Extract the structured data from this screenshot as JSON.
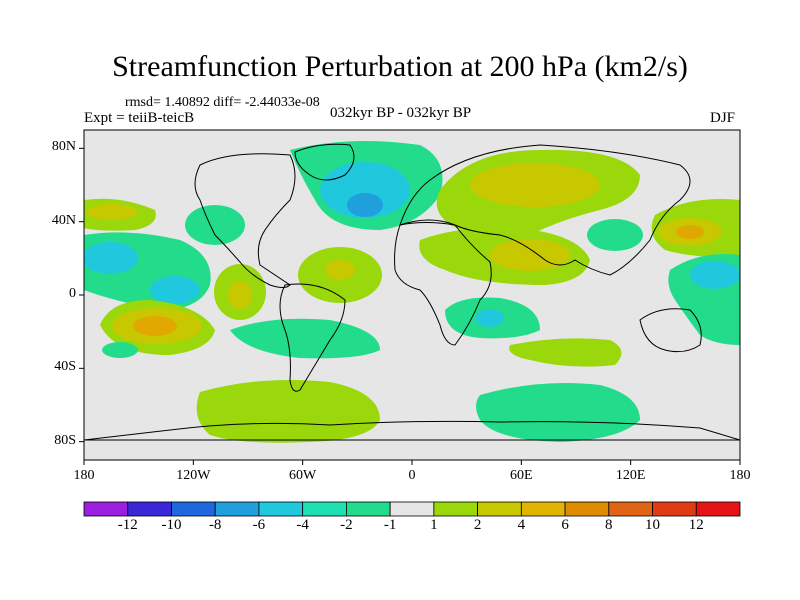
{
  "title": "Streamfunction Perturbation at 200 hPa (km2/s)",
  "stats": "rmsd= 1.40892 diff= -2.44033e-08",
  "experiment": "Expt = teiiB-teicB",
  "period": "032kyr BP - 032kyr BP",
  "season": "DJF",
  "colors": {
    "background": "#e6e6e6",
    "neg1": "#22dc8c",
    "pos1": "#9ad80c",
    "pos2": "#c8c800",
    "pos3": "#e0a800"
  },
  "y_axis": {
    "ticks": [
      {
        "label": "80N",
        "value": 80
      },
      {
        "label": "40N",
        "value": 40
      },
      {
        "label": "0",
        "value": 0
      },
      {
        "label": "40S",
        "value": -40
      },
      {
        "label": "80S",
        "value": -80
      }
    ]
  },
  "x_axis": {
    "ticks": [
      {
        "label": "180",
        "value": -180
      },
      {
        "label": "120W",
        "value": -120
      },
      {
        "label": "60W",
        "value": -60
      },
      {
        "label": "0",
        "value": 0
      },
      {
        "label": "60E",
        "value": 60
      },
      {
        "label": "120E",
        "value": 120
      },
      {
        "label": "180",
        "value": 180
      }
    ]
  },
  "colorbar": {
    "colors": [
      "#9b1fe0",
      "#3a27d8",
      "#1f67dc",
      "#1fa0dc",
      "#1fc8dc",
      "#1fe0b0",
      "#22dc8c",
      "#e6e6e6",
      "#9ad80c",
      "#c8c800",
      "#e0b400",
      "#e08c00",
      "#e06414",
      "#e03c14",
      "#e61414"
    ],
    "labels": [
      "-12",
      "-10",
      "-8",
      "-6",
      "-4",
      "-2",
      "-1",
      "1",
      "2",
      "4",
      "6",
      "8",
      "10",
      "12"
    ]
  },
  "chart_data": {
    "type": "contour-map",
    "variable": "Streamfunction Perturbation at 200 hPa",
    "units": "km2/s",
    "levels": [
      -12,
      -10,
      -8,
      -6,
      -4,
      -2,
      -1,
      1,
      2,
      4,
      6,
      8,
      10,
      12
    ],
    "lon_range": [
      -180,
      180
    ],
    "lat_range": [
      -90,
      90
    ],
    "features": [
      {
        "name": "North Atlantic / Greenland negative",
        "lon_center": -35,
        "lat_center": 55,
        "levels": [
          "-1",
          "-2"
        ]
      },
      {
        "name": "Eurasia positive",
        "lon_center": 30,
        "lat_center": 50,
        "levels": [
          "1",
          "2"
        ]
      },
      {
        "name": "Middle East positive",
        "lon_center": 55,
        "lat_center": 25,
        "levels": [
          "1",
          "2"
        ]
      },
      {
        "name": "North Pacific west positive",
        "lon_center": 150,
        "lat_center": 35,
        "levels": [
          "1",
          "2",
          "4"
        ]
      },
      {
        "name": "Central Pacific negative",
        "lon_center": -165,
        "lat_center": 20,
        "levels": [
          "-1",
          "-2"
        ]
      },
      {
        "name": "South Pacific positive",
        "lon_center": -135,
        "lat_center": -20,
        "levels": [
          "1",
          "2",
          "4"
        ]
      },
      {
        "name": "Southern Ocean positive",
        "lon_center": -60,
        "lat_center": -65,
        "levels": [
          "1"
        ]
      },
      {
        "name": "Antarctic Indian sector negative",
        "lon_center": 70,
        "lat_center": -65,
        "levels": [
          "-1"
        ]
      }
    ]
  }
}
